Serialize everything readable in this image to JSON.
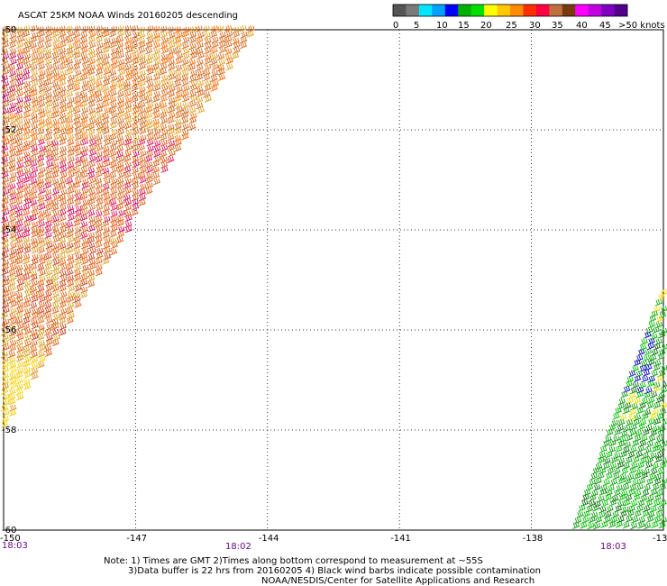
{
  "title": "ASCAT 25KM NOAA Winds 20160205 descending",
  "colorbar": {
    "colors": [
      "#555555",
      "#7a7a7a",
      "#00e5ff",
      "#00a0ff",
      "#0000ff",
      "#00b000",
      "#00e000",
      "#ffff00",
      "#ffc800",
      "#ff8c00",
      "#ff3000",
      "#ff0040",
      "#c07040",
      "#7a3a10",
      "#ff00ff",
      "#c000e0",
      "#8000c0",
      "#50008a"
    ],
    "labels": [
      "0",
      "5",
      "10",
      "15",
      "20",
      "25",
      "30",
      "35",
      "40",
      "45",
      ">50 knots"
    ]
  },
  "chart_data": {
    "type": "scatter",
    "title": "ASCAT 25KM NOAA Winds 20160205 descending",
    "x_ticks": [
      "-150",
      "-147",
      "-144",
      "-141",
      "-138",
      "-13"
    ],
    "y_ticks": [
      "-50",
      "-52",
      "-54",
      "-56",
      "-58",
      "-60"
    ],
    "xlim": [
      -150,
      -135
    ],
    "ylim": [
      -60,
      -50
    ],
    "grid": true,
    "time_labels": [
      "18:03",
      "18:02",
      "18:03"
    ],
    "swaths": [
      {
        "lon_range": [
          -150,
          -144.3
        ],
        "lat_range": [
          -60,
          -50
        ],
        "dominant_speed_knots": "30-40"
      },
      {
        "lon_range": [
          -137.3,
          -135
        ],
        "lat_range": [
          -60,
          -55.7
        ],
        "dominant_speed_knots": "15-20"
      }
    ]
  },
  "notes": {
    "line1": "Note: 1) Times are GMT 2)Times along bottom correspond to measurement at ~55S",
    "line2": "3)Data buffer is 22 hrs from 20160205 4) Black wind barbs indicate possible contamination",
    "line3": "NOAA/NESDIS/Center for Satellite Applications and Research"
  }
}
